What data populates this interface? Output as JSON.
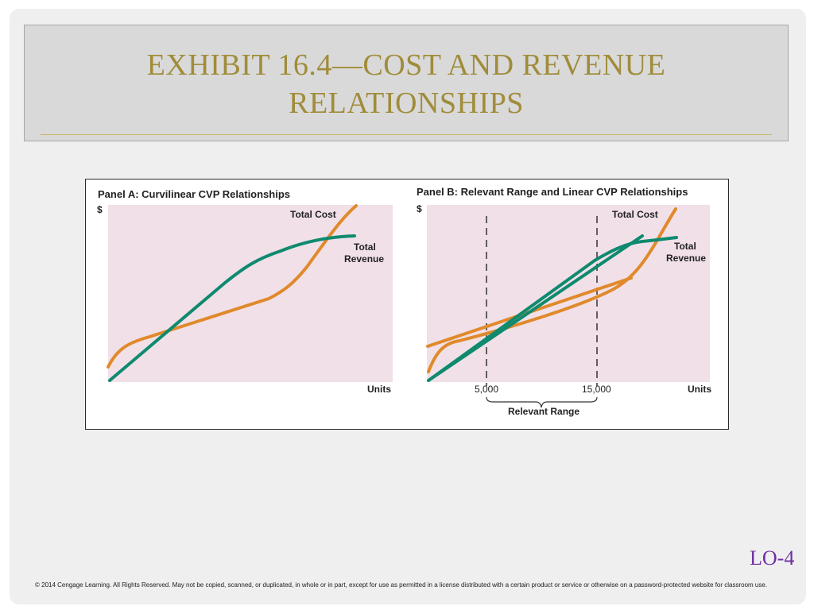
{
  "slide": {
    "title_line1": "EXHIBIT 16.4—COST AND REVENUE",
    "title_line2": "RELATIONSHIPS",
    "lo_tag": "LO-4",
    "copyright": "© 2014 Cengage Learning. All Rights Reserved. May not be copied, scanned, or duplicated, in whole or in part, except for use as permitted in a license distributed with a certain product or service or otherwise on a password-protected website for classroom use."
  },
  "colors": {
    "title": "#a08c3a",
    "plot_background": "#f1e0e8",
    "total_cost_line": "#e08a2c",
    "total_revenue_line": "#0f8a6e",
    "lo_tag": "#7030a0"
  },
  "figure": {
    "panel_a": {
      "title": "Panel A: Curvilinear CVP Relationships",
      "y_label": "$",
      "x_label": "Units",
      "total_cost_label": "Total Cost",
      "total_revenue_label_line1": "Total",
      "total_revenue_label_line2": "Revenue"
    },
    "panel_b": {
      "title": "Panel B: Relevant Range and Linear CVP Relationships",
      "y_label": "$",
      "x_label": "Units",
      "total_cost_label": "Total Cost",
      "total_revenue_label_line1": "Total",
      "total_revenue_label_line2": "Revenue",
      "tick_low": "5,000",
      "tick_high": "15,000",
      "relevant_range_label": "Relevant Range"
    }
  }
}
